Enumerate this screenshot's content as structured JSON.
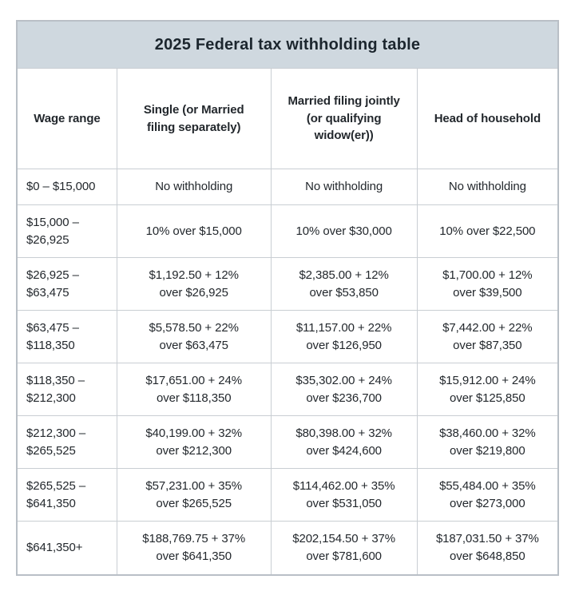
{
  "title": "2025 Federal tax withholding table",
  "colors": {
    "title_band_bg": "#cfd8df",
    "border": "#c9ced3",
    "text": "#23282d",
    "page_bg": "#ffffff"
  },
  "table": {
    "headers": [
      "Wage range",
      "Single (or Married\nfiling separately)",
      "Married filing jointly\n(or qualifying\nwidow(er))",
      "Head of household"
    ],
    "rows": [
      [
        "$0 – $15,000",
        "No withholding",
        "No withholding",
        "No withholding"
      ],
      [
        "$15,000 –\n$26,925",
        "10% over $15,000",
        "10% over $30,000",
        "10% over $22,500"
      ],
      [
        "$26,925 –\n$63,475",
        "$1,192.50 + 12%\nover $26,925",
        "$2,385.00 + 12%\nover $53,850",
        "$1,700.00 + 12%\nover $39,500"
      ],
      [
        "$63,475 –\n$118,350",
        "$5,578.50 + 22%\nover $63,475",
        "$11,157.00 + 22%\nover $126,950",
        "$7,442.00 + 22%\nover $87,350"
      ],
      [
        "$118,350 –\n$212,300",
        "$17,651.00 + 24%\nover $118,350",
        "$35,302.00 + 24%\nover $236,700",
        "$15,912.00 + 24%\nover $125,850"
      ],
      [
        "$212,300 –\n$265,525",
        "$40,199.00 + 32%\nover $212,300",
        "$80,398.00 + 32%\nover $424,600",
        "$38,460.00 + 32%\nover $219,800"
      ],
      [
        "$265,525 –\n$641,350",
        "$57,231.00 + 35%\nover $265,525",
        "$114,462.00 + 35%\nover $531,050",
        "$55,484.00 + 35%\nover $273,000"
      ],
      [
        "$641,350+",
        "$188,769.75 + 37%\nover $641,350",
        "$202,154.50 + 37%\nover $781,600",
        "$187,031.50 + 37%\nover $648,850"
      ]
    ]
  }
}
